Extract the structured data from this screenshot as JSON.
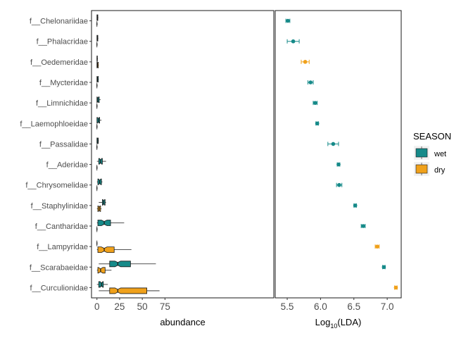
{
  "chart_data": [
    {
      "type": "boxplot",
      "panel": "left",
      "xlabel": "abundance",
      "ylabel": "",
      "xlim": [
        -6,
        195
      ],
      "xticks": [
        0,
        25,
        50,
        75
      ],
      "horizontal": true,
      "notched": true,
      "categories": [
        "f__Chelonariidae",
        "f__Phalacridae",
        "f__Oedemeridae",
        "f__Mycteridae",
        "f__Limnichidae",
        "f__Laemophloeidae",
        "f__Passalidae",
        "f__Aderidae",
        "f__Chrysomelidae",
        "f__Staphylinidae",
        "f__Cantharidae",
        "f__Lampyridae",
        "f__Scarabaeidae",
        "f__Curculionidae"
      ],
      "series": [
        {
          "name": "wet",
          "boxes": [
            {
              "q1": 0,
              "median": 0.5,
              "q3": 1,
              "whisker_low": 0,
              "whisker_high": 1.5
            },
            {
              "q1": 0,
              "median": 0.5,
              "q3": 1,
              "whisker_low": 0,
              "whisker_high": 1.5
            },
            {
              "q1": 0,
              "median": 0.2,
              "q3": 0.5,
              "whisker_low": 0,
              "whisker_high": 1
            },
            {
              "q1": 0,
              "median": 0.5,
              "q3": 1.5,
              "whisker_low": 0,
              "whisker_high": 2
            },
            {
              "q1": 0,
              "median": 1,
              "q3": 2.5,
              "whisker_low": 0,
              "whisker_high": 4
            },
            {
              "q1": 0,
              "median": 1.5,
              "q3": 3,
              "whisker_low": 0,
              "whisker_high": 5
            },
            {
              "q1": 0,
              "median": 1,
              "q3": 1.5,
              "whisker_low": 0,
              "whisker_high": 2
            },
            {
              "q1": 2,
              "median": 4,
              "q3": 6,
              "whisker_low": 0,
              "whisker_high": 10
            },
            {
              "q1": 1,
              "median": 3,
              "q3": 5,
              "whisker_low": 0,
              "whisker_high": 6
            },
            {
              "q1": 6,
              "median": 7.5,
              "q3": 9,
              "whisker_low": 2,
              "whisker_high": 10
            },
            {
              "q1": 1,
              "median": 8,
              "q3": 15,
              "whisker_low": 0,
              "whisker_high": 30
            },
            {
              "q1": 0,
              "median": 0,
              "q3": 0,
              "whisker_low": 0,
              "whisker_high": 0
            },
            {
              "q1": 14,
              "median": 23,
              "q3": 37,
              "whisker_low": 2,
              "whisker_high": 65
            },
            {
              "q1": 2,
              "median": 5,
              "q3": 7,
              "whisker_low": 0,
              "whisker_high": 12
            }
          ]
        },
        {
          "name": "dry",
          "boxes": [
            {
              "q1": 0,
              "median": 0,
              "q3": 0,
              "whisker_low": 0,
              "whisker_high": 0.5
            },
            {
              "q1": 0,
              "median": 0,
              "q3": 0,
              "whisker_low": 0,
              "whisker_high": 0.5
            },
            {
              "q1": 0,
              "median": 0.5,
              "q3": 1.5,
              "whisker_low": 0,
              "whisker_high": 2
            },
            {
              "q1": 0,
              "median": 0,
              "q3": 0,
              "whisker_low": 0,
              "whisker_high": 0.5
            },
            {
              "q1": 0,
              "median": 0,
              "q3": 0,
              "whisker_low": 0,
              "whisker_high": 0.5
            },
            {
              "q1": 0,
              "median": 0,
              "q3": 0,
              "whisker_low": 0,
              "whisker_high": 0.5
            },
            {
              "q1": 0,
              "median": 0,
              "q3": 0,
              "whisker_low": 0,
              "whisker_high": 0.5
            },
            {
              "q1": 0,
              "median": 0,
              "q3": 0,
              "whisker_low": 0,
              "whisker_high": 0.5
            },
            {
              "q1": 0,
              "median": 0,
              "q3": 0,
              "whisker_low": 0,
              "whisker_high": 0.5
            },
            {
              "q1": 1,
              "median": 2.5,
              "q3": 4,
              "whisker_low": 0,
              "whisker_high": 5
            },
            {
              "q1": 0,
              "median": 0,
              "q3": 0,
              "whisker_low": 0,
              "whisker_high": 0.5
            },
            {
              "q1": 1,
              "median": 8,
              "q3": 19,
              "whisker_low": 0,
              "whisker_high": 38
            },
            {
              "q1": 1,
              "median": 4,
              "q3": 9,
              "whisker_low": 0,
              "whisker_high": 16
            },
            {
              "q1": 14,
              "median": 23,
              "q3": 55,
              "whisker_low": 2,
              "whisker_high": 69
            }
          ]
        }
      ]
    },
    {
      "type": "scatter",
      "panel": "right",
      "xlabel_base": "Log",
      "xlabel_sub": "10",
      "xlabel_rest": "(LDA)",
      "xlim": [
        5.32,
        7.21
      ],
      "xticks": [
        5.5,
        6.0,
        6.5,
        7.0
      ],
      "xtick_labels": [
        "5.5",
        "6.0",
        "6.5",
        "7.0"
      ],
      "points": [
        {
          "category": "f__Chelonariidae",
          "season": "wet",
          "value": 5.51,
          "error": 0.03
        },
        {
          "category": "f__Phalacridae",
          "season": "wet",
          "value": 5.59,
          "error": 0.09
        },
        {
          "category": "f__Oedemeridae",
          "season": "dry",
          "value": 5.77,
          "error": 0.06
        },
        {
          "category": "f__Mycteridae",
          "season": "wet",
          "value": 5.85,
          "error": 0.04
        },
        {
          "category": "f__Limnichidae",
          "season": "wet",
          "value": 5.92,
          "error": 0.03
        },
        {
          "category": "f__Laemophloeidae",
          "season": "wet",
          "value": 5.95,
          "error": 0.02
        },
        {
          "category": "f__Passalidae",
          "season": "wet",
          "value": 6.19,
          "error": 0.08
        },
        {
          "category": "f__Aderidae",
          "season": "wet",
          "value": 6.27,
          "error": 0.02
        },
        {
          "category": "f__Chrysomelidae",
          "season": "wet",
          "value": 6.28,
          "error": 0.04
        },
        {
          "category": "f__Staphylinidae",
          "season": "wet",
          "value": 6.52,
          "error": 0.02
        },
        {
          "category": "f__Cantharidae",
          "season": "wet",
          "value": 6.64,
          "error": 0.03
        },
        {
          "category": "f__Lampyridae",
          "season": "dry",
          "value": 6.85,
          "error": 0.03
        },
        {
          "category": "f__Scarabaeidae",
          "season": "wet",
          "value": 6.95,
          "error": 0.02
        },
        {
          "category": "f__Curculionidae",
          "season": "dry",
          "value": 7.13,
          "error": 0.02
        }
      ]
    }
  ],
  "legend": {
    "title": "SEASON",
    "items": [
      {
        "label": "wet",
        "color": "#168a89"
      },
      {
        "label": "dry",
        "color": "#f0a11b"
      }
    ]
  },
  "colors": {
    "wet": "#168a89",
    "dry": "#f0a11b",
    "outline": "#1a1a1a"
  }
}
